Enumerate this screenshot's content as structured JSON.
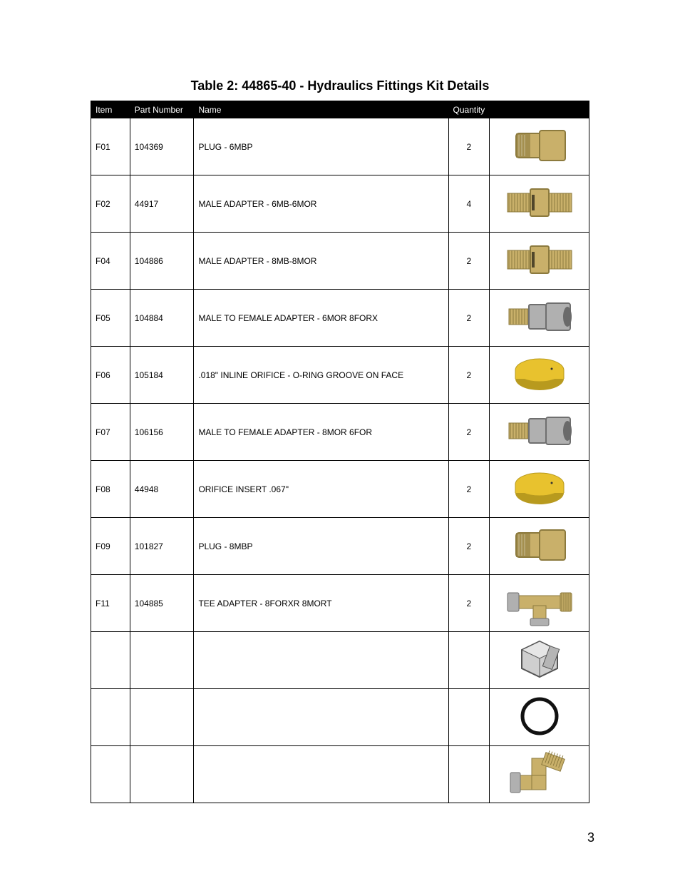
{
  "title": "Table 2: 44865-40 - Hydraulics Fittings Kit Details",
  "page_number": "3",
  "columns": {
    "item": "Item",
    "part": "Part Number",
    "name": "Name",
    "qty": "Quantity",
    "img": ""
  },
  "rows": [
    {
      "item": "F01",
      "part": "104369",
      "name": "PLUG - 6MBP",
      "qty": "2",
      "icon": "plug-hex"
    },
    {
      "item": "F02",
      "part": "44917",
      "name": "MALE ADAPTER -  6MB-6MOR",
      "qty": "4",
      "icon": "double-male"
    },
    {
      "item": "F04",
      "part": "104886",
      "name": "MALE ADAPTER - 8MB-8MOR",
      "qty": "2",
      "icon": "double-male"
    },
    {
      "item": "F05",
      "part": "104884",
      "name": "MALE TO FEMALE ADAPTER - 6MOR 8FORX",
      "qty": "2",
      "icon": "male-female"
    },
    {
      "item": "F06",
      "part": "105184",
      "name": ".018\" INLINE ORIFICE - O-RING GROOVE ON FACE",
      "qty": "2",
      "icon": "orifice-yellow"
    },
    {
      "item": "F07",
      "part": "106156",
      "name": "MALE TO FEMALE ADAPTER - 8MOR 6FOR",
      "qty": "2",
      "icon": "male-female"
    },
    {
      "item": "F08",
      "part": "44948",
      "name": "ORIFICE INSERT .067\"",
      "qty": "2",
      "icon": "orifice-yellow"
    },
    {
      "item": "F09",
      "part": "101827",
      "name": "PLUG - 8MBP",
      "qty": "2",
      "icon": "plug-hex"
    },
    {
      "item": "F11",
      "part": "104885",
      "name": "TEE ADAPTER - 8FORXR 8MORT",
      "qty": "2",
      "icon": "tee"
    },
    {
      "item": "",
      "part": "",
      "name": "",
      "qty": "",
      "icon": "hex-nut"
    },
    {
      "item": "",
      "part": "",
      "name": "",
      "qty": "",
      "icon": "oring"
    },
    {
      "item": "",
      "part": "",
      "name": "",
      "qty": "",
      "icon": "elbow"
    }
  ],
  "icon_colors": {
    "brass": "#c9b06a",
    "brass_dark": "#8c7a3e",
    "steel": "#b0b0b0",
    "steel_dark": "#6f6f6f",
    "yellow": "#e8c22e",
    "yellow_dark": "#b89a1e",
    "black": "#111111",
    "gray_line": "#555555"
  }
}
